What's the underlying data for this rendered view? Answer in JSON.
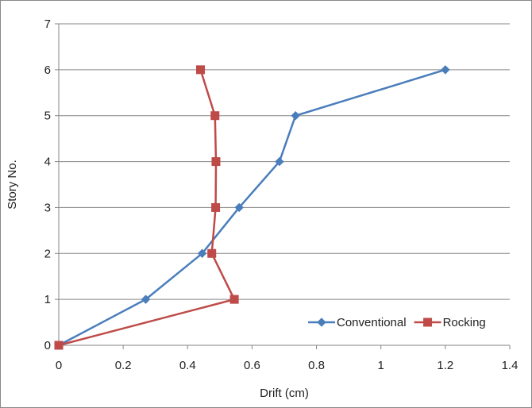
{
  "chart_data": {
    "type": "line",
    "title": "",
    "xlabel": "Drift (cm)",
    "ylabel": "Story No.",
    "xlim": [
      0,
      1.4
    ],
    "ylim": [
      0,
      7
    ],
    "x_ticks": [
      "0",
      "0.2",
      "0.4",
      "0.6",
      "0.8",
      "1",
      "1.2",
      "1.4"
    ],
    "y_ticks": [
      "0",
      "1",
      "2",
      "3",
      "4",
      "5",
      "6",
      "7"
    ],
    "grid": "horizontal",
    "legend_position": "bottom-right",
    "series": [
      {
        "name": "Conventional",
        "color": "#4a7ebb",
        "marker": "diamond",
        "points": [
          {
            "x": 0,
            "y": 0
          },
          {
            "x": 0.27,
            "y": 1
          },
          {
            "x": 0.445,
            "y": 2
          },
          {
            "x": 0.56,
            "y": 3
          },
          {
            "x": 0.685,
            "y": 4
          },
          {
            "x": 0.735,
            "y": 5
          },
          {
            "x": 1.2,
            "y": 6
          }
        ]
      },
      {
        "name": "Rocking",
        "color": "#be4b48",
        "marker": "square",
        "points": [
          {
            "x": 0,
            "y": 0
          },
          {
            "x": 0.545,
            "y": 1
          },
          {
            "x": 0.475,
            "y": 2
          },
          {
            "x": 0.487,
            "y": 3
          },
          {
            "x": 0.488,
            "y": 4
          },
          {
            "x": 0.485,
            "y": 5
          },
          {
            "x": 0.44,
            "y": 6
          }
        ]
      }
    ]
  }
}
